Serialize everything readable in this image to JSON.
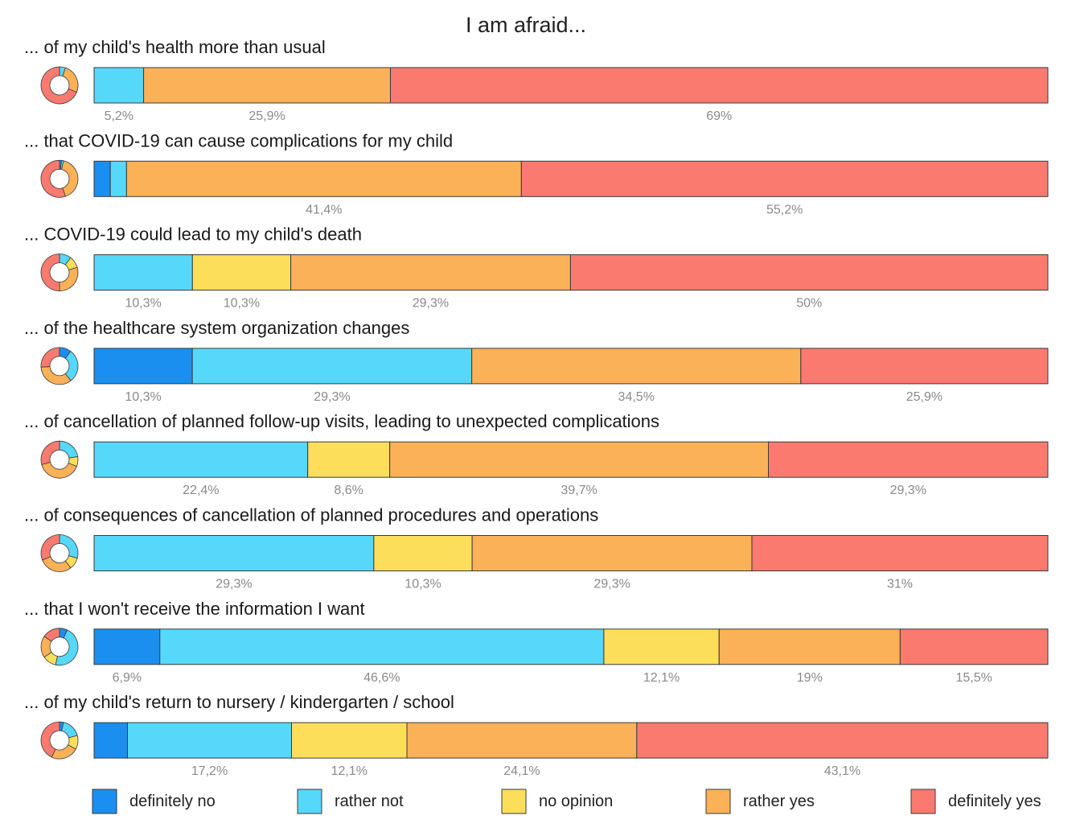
{
  "chart_data": {
    "type": "bar",
    "orientation": "horizontal-stacked-100",
    "title": "I am afraid...",
    "legend_position": "bottom",
    "series": [
      {
        "name": "definitely no",
        "color": "#1a8fef"
      },
      {
        "name": "rather not",
        "color": "#56d8fb"
      },
      {
        "name": "no opinion",
        "color": "#fcde5a"
      },
      {
        "name": "rather yes",
        "color": "#fbb158"
      },
      {
        "name": "definitely yes",
        "color": "#fb7a70"
      }
    ],
    "rows": [
      {
        "label": "... of my child's health more than usual",
        "values": [
          0,
          5.2,
          0,
          25.9,
          69
        ],
        "value_labels": [
          "",
          "5,2%",
          "",
          "25,9%",
          "69%"
        ]
      },
      {
        "label": "... that COVID-19 can cause complications for my child",
        "values": [
          1.7,
          1.7,
          0,
          41.4,
          55.2
        ],
        "value_labels": [
          "",
          "",
          "",
          "41,4%",
          "55,2%"
        ]
      },
      {
        "label": "... COVID-19 could lead to my child's death",
        "values": [
          0,
          10.3,
          10.3,
          29.3,
          50
        ],
        "value_labels": [
          "",
          "10,3%",
          "10,3%",
          "29,3%",
          "50%"
        ]
      },
      {
        "label": "... of the healthcare system organization changes",
        "values": [
          10.3,
          29.3,
          0,
          34.5,
          25.9
        ],
        "value_labels": [
          "10,3%",
          "29,3%",
          "",
          "34,5%",
          "25,9%"
        ]
      },
      {
        "label": "... of cancellation of planned follow-up visits, leading to unexpected complications",
        "values": [
          0,
          22.4,
          8.6,
          39.7,
          29.3
        ],
        "value_labels": [
          "",
          "22,4%",
          "8,6%",
          "39,7%",
          "29,3%"
        ]
      },
      {
        "label": "... of consequences of cancellation of planned procedures and operations",
        "values": [
          0,
          29.3,
          10.3,
          29.3,
          31
        ],
        "value_labels": [
          "",
          "29,3%",
          "10,3%",
          "29,3%",
          "31%"
        ]
      },
      {
        "label": "... that I won't receive the information I want",
        "values": [
          6.9,
          46.6,
          12.1,
          19,
          15.5
        ],
        "value_labels": [
          "6,9%",
          "46,6%",
          "12,1%",
          "19%",
          "15,5%"
        ]
      },
      {
        "label": "... of my child's return to nursery / kindergarten / school",
        "values": [
          3.5,
          17.2,
          12.1,
          24.1,
          43.1
        ],
        "value_labels": [
          "",
          "17,2%",
          "12,1%",
          "24,1%",
          "43,1%"
        ]
      }
    ]
  }
}
